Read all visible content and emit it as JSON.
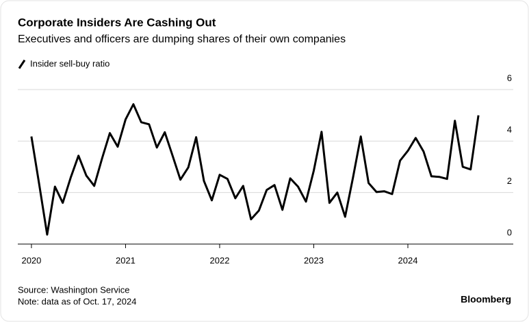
{
  "chart_data": {
    "type": "line",
    "title": "Corporate Insiders Are Cashing Out",
    "subtitle": "Executives and officers are dumping shares of their own companies",
    "source": "Source: Washington Service",
    "note": "Note: data as of Oct. 17, 2024",
    "brand": "Bloomberg",
    "x": [
      2020,
      2020.083,
      2020.167,
      2020.25,
      2020.333,
      2020.417,
      2020.5,
      2020.583,
      2020.667,
      2020.75,
      2020.833,
      2020.917,
      2021,
      2021.083,
      2021.167,
      2021.25,
      2021.333,
      2021.417,
      2021.5,
      2021.583,
      2021.667,
      2021.75,
      2021.833,
      2021.917,
      2022,
      2022.083,
      2022.167,
      2022.25,
      2022.333,
      2022.417,
      2022.5,
      2022.583,
      2022.667,
      2022.75,
      2022.833,
      2022.917,
      2023,
      2023.083,
      2023.167,
      2023.25,
      2023.333,
      2023.417,
      2023.5,
      2023.583,
      2023.667,
      2023.75,
      2023.833,
      2023.917,
      2024,
      2024.083,
      2024.167,
      2024.25,
      2024.333,
      2024.417,
      2024.5,
      2024.583,
      2024.667,
      2024.75
    ],
    "series": [
      {
        "name": "Insider sell-buy ratio",
        "color": "#000000",
        "values": [
          4.18,
          2.3,
          0.37,
          2.23,
          1.6,
          2.58,
          3.43,
          2.66,
          2.26,
          3.32,
          4.31,
          3.78,
          4.84,
          5.43,
          4.73,
          4.65,
          3.75,
          4.34,
          3.43,
          2.5,
          2.98,
          4.15,
          2.45,
          1.7,
          2.69,
          2.53,
          1.78,
          2.26,
          0.96,
          1.3,
          2.1,
          2.29,
          1.33,
          2.55,
          2.23,
          1.65,
          2.85,
          4.36,
          1.6,
          2.0,
          1.06,
          2.58,
          4.18,
          2.37,
          2.02,
          2.05,
          1.94,
          3.24,
          3.62,
          4.12,
          3.59,
          2.63,
          2.61,
          2.53,
          4.79,
          3.0,
          2.9,
          5.0
        ]
      }
    ],
    "xlim": [
      2019.855,
      2025.12
    ],
    "xticks": [
      2020,
      2021,
      2022,
      2023,
      2024
    ],
    "ylim": [
      0,
      6
    ],
    "yticks": [
      0,
      2,
      4,
      6
    ],
    "grid": true
  }
}
